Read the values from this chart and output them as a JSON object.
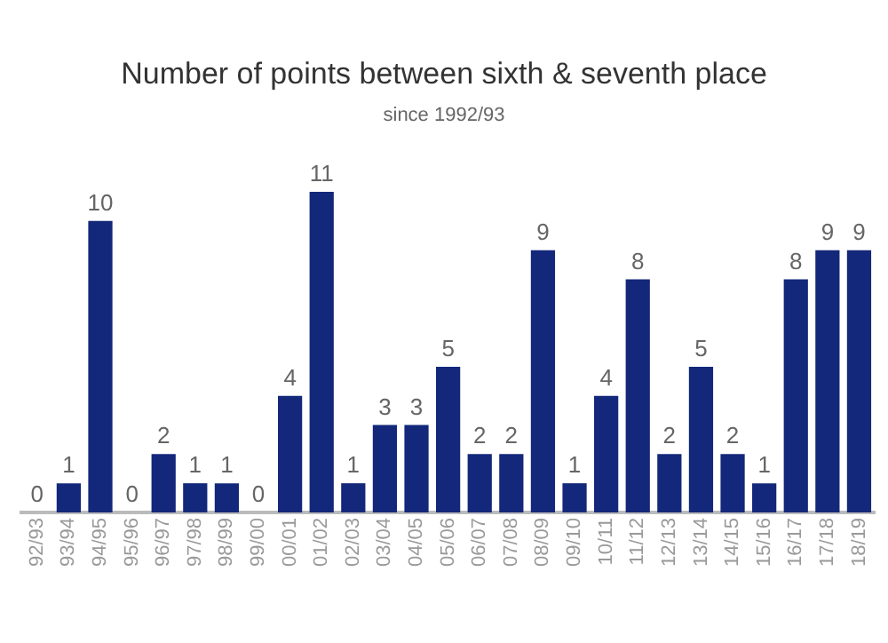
{
  "chart_data": {
    "type": "bar",
    "title": "Number of points between sixth & seventh place",
    "subtitle": "since 1992/93",
    "categories": [
      "92/93",
      "93/94",
      "94/95",
      "95/96",
      "96/97",
      "97/98",
      "98/99",
      "99/00",
      "00/01",
      "01/02",
      "02/03",
      "03/04",
      "04/05",
      "05/06",
      "06/07",
      "07/08",
      "08/09",
      "09/10",
      "10/11",
      "11/12",
      "12/13",
      "13/14",
      "14/15",
      "15/16",
      "16/17",
      "17/18",
      "18/19"
    ],
    "values": [
      0,
      1,
      10,
      0,
      2,
      1,
      1,
      0,
      4,
      11,
      1,
      3,
      3,
      5,
      2,
      2,
      9,
      1,
      4,
      8,
      2,
      5,
      2,
      1,
      8,
      9,
      9
    ],
    "color": "#13287a",
    "data_labels": true,
    "relative": false,
    "grid": false,
    "legend": false
  }
}
